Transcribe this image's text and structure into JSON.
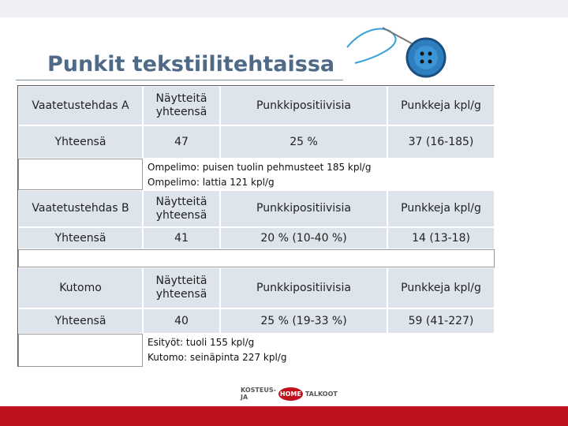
{
  "header": {
    "title": "Punkit tekstiilitehtaissa"
  },
  "table": {
    "sections": [
      {
        "header": [
          "Vaatetustehdas A",
          "Näytteitä yhteensä",
          "Punkkipositiivisia",
          "Punkkeja kpl/g"
        ],
        "total": [
          "Yhteensä",
          "47",
          "25 %",
          "37 (16-185)"
        ],
        "note": [
          "Ompelimo: puisen tuolin pehmusteet 185 kpl/g",
          "Ompelimo: lattia 121 kpl/g"
        ]
      },
      {
        "header": [
          "Vaatetustehdas B",
          "Näytteitä yhteensä",
          "Punkkipositiivisia",
          "Punkkeja kpl/g"
        ],
        "total": [
          "Yhteensä",
          "41",
          "20 % (10-40 %)",
          "14 (13-18)"
        ]
      },
      {
        "header": [
          "Kutomo",
          "Näytteitä yhteensä",
          "Punkkipositiivisia",
          "Punkkeja kpl/g"
        ],
        "total": [
          "Yhteensä",
          "40",
          "25 % (19-33 %)",
          "59 (41-227)"
        ],
        "note": [
          "Esityöt: tuoli 155 kpl/g",
          "Kutomo: seinäpinta 227 kpl/g"
        ]
      }
    ]
  },
  "footer": {
    "logo": [
      "KOSTEUS- JA",
      "HOME",
      "TALKOOT"
    ]
  }
}
